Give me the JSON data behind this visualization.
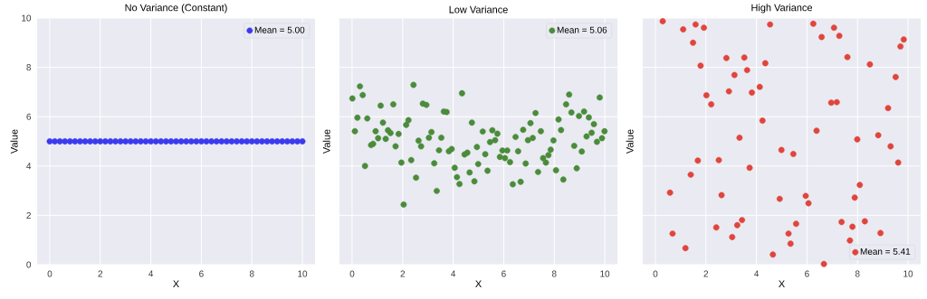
{
  "chart_data": [
    {
      "type": "scatter",
      "title": "No Variance (Constant)",
      "xlabel": "X",
      "ylabel": "Value",
      "xlim": [
        -0.5,
        10.5
      ],
      "ylim": [
        0,
        10
      ],
      "xticks": [
        0,
        2,
        4,
        6,
        8,
        10
      ],
      "yticks": [
        0,
        2,
        4,
        6,
        8,
        10
      ],
      "grid": true,
      "legend": "top right",
      "marker": "circle",
      "x": [
        0,
        0.2,
        0.4,
        0.6,
        0.8,
        1.0,
        1.2,
        1.4,
        1.6,
        1.8,
        2.0,
        2.2,
        2.4,
        2.6,
        2.8,
        3.0,
        3.2,
        3.4,
        3.6,
        3.8,
        4.0,
        4.2,
        4.4,
        4.6,
        4.8,
        5.0,
        5.2,
        5.4,
        5.6,
        5.8,
        6.0,
        6.2,
        6.4,
        6.6,
        6.8,
        7.0,
        7.2,
        7.4,
        7.6,
        7.8,
        8.0,
        8.2,
        8.4,
        8.6,
        8.8,
        9.0,
        9.2,
        9.4,
        9.6,
        9.8,
        10.0
      ],
      "series": [
        {
          "name": "Mean = 5.00",
          "color": "#3a3af0",
          "values": [
            5,
            5,
            5,
            5,
            5,
            5,
            5,
            5,
            5,
            5,
            5,
            5,
            5,
            5,
            5,
            5,
            5,
            5,
            5,
            5,
            5,
            5,
            5,
            5,
            5,
            5,
            5,
            5,
            5,
            5,
            5,
            5,
            5,
            5,
            5,
            5,
            5,
            5,
            5,
            5,
            5,
            5,
            5,
            5,
            5,
            5,
            5,
            5,
            5,
            5,
            5
          ]
        }
      ]
    },
    {
      "type": "scatter",
      "title": "Low Variance",
      "xlabel": "X",
      "ylabel": "Value",
      "xlim": [
        -0.5,
        10.5
      ],
      "ylim": [
        0,
        10
      ],
      "xticks": [
        0,
        2,
        4,
        6,
        8,
        10
      ],
      "yticks": [
        0,
        2,
        4,
        6,
        8,
        10
      ],
      "grid": true,
      "legend": "top right",
      "marker": "circle",
      "tick_labels": "x",
      "x": [
        0.31,
        0.01,
        0.42,
        1.13,
        1.63,
        2.43,
        0.21,
        0.6,
        0.11,
        1.22,
        0.93,
        1.42,
        1.52,
        1.03,
        1.33,
        1.84,
        0.75,
        0.83,
        1.72,
        0.51,
        1.95,
        2.34,
        2.04,
        2.23,
        2.14,
        2.8,
        2.94,
        2.53,
        2.63,
        2.73,
        3.04,
        3.14,
        3.53,
        3.44,
        3.25,
        3.35,
        3.63,
        3.74,
        4.35,
        3.83,
        3.94,
        4.06,
        4.15,
        4.25,
        4.74,
        4.45,
        4.56,
        4.65,
        4.84,
        4.94,
        4.99,
        5.17,
        5.27,
        5.36,
        5.46,
        5.55,
        5.66,
        5.75,
        5.85,
        5.95,
        6.05,
        6.14,
        6.25,
        6.36,
        6.47,
        6.57,
        6.67,
        6.77,
        6.87,
        6.96,
        7.06,
        7.15,
        7.26,
        7.36,
        7.47,
        7.56,
        7.67,
        7.77,
        7.86,
        7.97,
        8.07,
        8.17,
        8.27,
        8.36,
        8.47,
        8.59,
        8.68,
        8.79,
        8.89,
        8.98,
        9.09,
        9.18,
        9.28,
        9.37,
        9.48,
        9.57,
        9.69,
        9.8,
        9.89,
        9.99
      ],
      "series": [
        {
          "name": "Mean = 5.06",
          "color": "#4a8c3a",
          "values": [
            7.23,
            6.74,
            6.88,
            6.45,
            6.5,
            7.29,
            5.96,
            5.93,
            5.41,
            5.76,
            5.41,
            5.45,
            5.34,
            5.13,
            5.1,
            5.3,
            4.85,
            4.9,
            4.8,
            4.0,
            4.14,
            4.24,
            2.44,
            5.86,
            5.67,
            6.53,
            6.48,
            3.53,
            5.03,
            4.8,
            5.15,
            5.38,
            5.15,
            4.64,
            4.11,
            2.99,
            6.21,
            6.19,
            6.95,
            4.6,
            4.69,
            3.93,
            3.55,
            3.27,
            5.76,
            4.47,
            4.54,
            3.74,
            3.38,
            4.77,
            4.08,
            5.4,
            4.48,
            3.81,
            4.97,
            5.45,
            5.05,
            5.31,
            4.37,
            4.63,
            4.32,
            4.63,
            4.16,
            3.26,
            5.18,
            4.6,
            3.36,
            5.47,
            4.1,
            5.05,
            5.74,
            5.14,
            6.15,
            3.76,
            5.41,
            4.32,
            4.14,
            4.44,
            4.66,
            5.04,
            3.83,
            5.89,
            5.46,
            3.45,
            6.5,
            6.9,
            6.17,
            4.82,
            3.91,
            6.03,
            4.59,
            6.21,
            5.2,
            5.97,
            5.35,
            5.7,
            4.98,
            6.78,
            5.13,
            5.41
          ]
        }
      ]
    },
    {
      "type": "scatter",
      "title": "High Variance",
      "xlabel": "X",
      "ylabel": "Value",
      "xlim": [
        -0.5,
        10.5
      ],
      "ylim": [
        0,
        10
      ],
      "xticks": [
        0,
        2,
        4,
        6,
        8,
        10
      ],
      "yticks": [
        0,
        2,
        4,
        6,
        8,
        10
      ],
      "grid": true,
      "legend": "bottom right",
      "marker": "circle",
      "tick_labels": "x",
      "x": [
        0.29,
        1.1,
        1.59,
        1.92,
        1.49,
        4.54,
        2.81,
        3.52,
        4.35,
        1.79,
        3.63,
        3.13,
        2.91,
        3.82,
        4.13,
        2.02,
        2.21,
        4.24,
        3.33,
        4.99,
        1.68,
        2.51,
        3.73,
        1.4,
        0.58,
        2.62,
        4.92,
        3.43,
        3.24,
        2.41,
        3.04,
        0.68,
        1.19,
        4.65,
        6.25,
        7.07,
        6.58,
        7.28,
        9.83,
        9.7,
        7.6,
        8.49,
        9.51,
        6.96,
        7.18,
        9.21,
        6.38,
        7.99,
        8.82,
        9.31,
        9.61,
        5.46,
        8.09,
        7.89,
        5.95,
        6.06,
        5.57,
        5.27,
        5.35,
        7.37,
        7.8,
        8.29,
        8.91,
        7.7,
        6.67
      ],
      "series": [
        {
          "name": "Mean = 5.41",
          "color": "#e0453c",
          "values": [
            9.87,
            9.54,
            9.74,
            9.61,
            9.0,
            9.74,
            8.38,
            8.4,
            8.17,
            8.07,
            7.89,
            7.69,
            7.03,
            6.98,
            7.21,
            6.87,
            6.5,
            5.84,
            5.15,
            4.65,
            4.22,
            4.24,
            3.93,
            3.65,
            2.92,
            2.82,
            2.67,
            1.81,
            1.6,
            1.51,
            1.12,
            1.26,
            0.67,
            0.41,
            9.77,
            9.61,
            9.23,
            9.28,
            9.13,
            8.85,
            8.42,
            8.12,
            7.61,
            6.57,
            6.59,
            6.35,
            5.43,
            5.08,
            5.25,
            4.8,
            4.14,
            4.49,
            3.23,
            2.72,
            2.79,
            2.49,
            1.66,
            1.26,
            0.85,
            1.73,
            1.54,
            1.76,
            1.28,
            0.98,
            0.03
          ]
        }
      ]
    }
  ]
}
